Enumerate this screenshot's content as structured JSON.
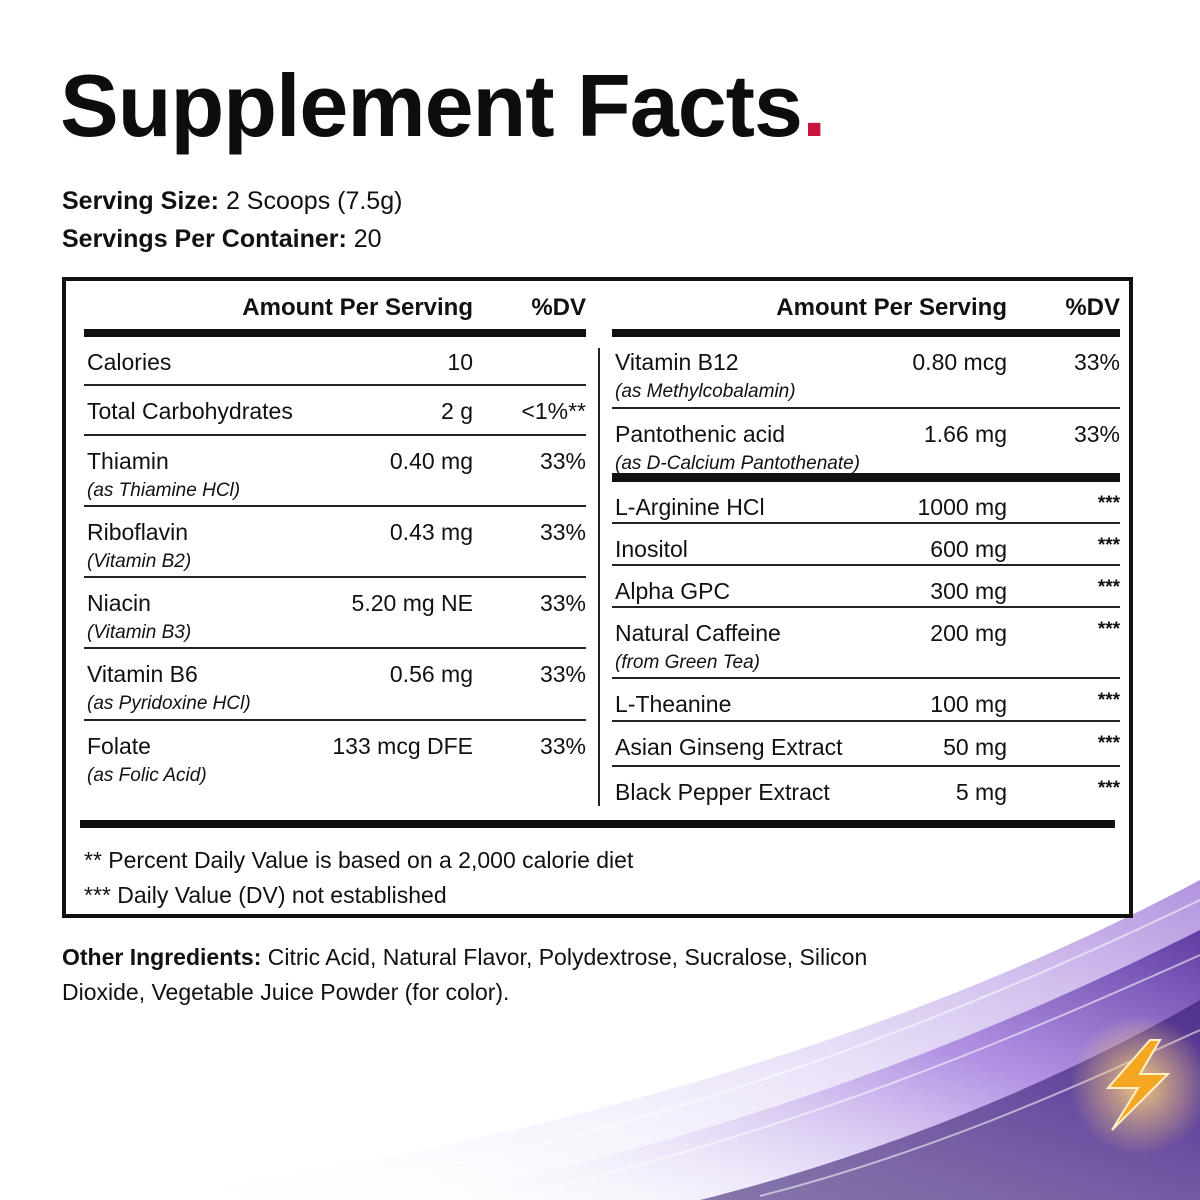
{
  "title": "Supplement Facts",
  "title_dot": ".",
  "serving": {
    "size_label": "Serving Size:",
    "size_value": "2 Scoops (7.5g)",
    "per_container_label": "Servings Per Container:",
    "per_container_value": "20"
  },
  "table": {
    "header_amount": "Amount Per Serving",
    "header_dv": "%DV",
    "left_rows": [
      {
        "name": "Calories",
        "sub": "",
        "amount": "10",
        "dv": ""
      },
      {
        "name": "Total Carbohydrates",
        "sub": "",
        "amount": "2 g",
        "dv": "<1%**"
      },
      {
        "name": "Thiamin",
        "sub": "(as Thiamine HCl)",
        "amount": "0.40 mg",
        "dv": "33%"
      },
      {
        "name": "Riboflavin",
        "sub": "(Vitamin B2)",
        "amount": "0.43 mg",
        "dv": "33%"
      },
      {
        "name": "Niacin",
        "sub": "(Vitamin B3)",
        "amount": "5.20 mg NE",
        "dv": "33%"
      },
      {
        "name": "Vitamin B6",
        "sub": "(as Pyridoxine HCl)",
        "amount": "0.56 mg",
        "dv": "33%"
      },
      {
        "name": "Folate",
        "sub": "(as Folic Acid)",
        "amount": "133 mcg DFE",
        "dv": "33%"
      }
    ],
    "right_rows_top": [
      {
        "name": "Vitamin B12",
        "sub": "(as Methylcobalamin)",
        "amount": "0.80 mcg",
        "dv": "33%"
      },
      {
        "name": "Pantothenic acid",
        "sub": "(as D-Calcium Pantothenate)",
        "amount": "1.66 mg",
        "dv": "33%"
      }
    ],
    "right_rows_bottom": [
      {
        "name": "L-Arginine HCl",
        "sub": "",
        "amount": "1000 mg",
        "dv": "***"
      },
      {
        "name": "Inositol",
        "sub": "",
        "amount": "600 mg",
        "dv": "***"
      },
      {
        "name": "Alpha GPC",
        "sub": "",
        "amount": "300 mg",
        "dv": "***"
      },
      {
        "name": "Natural Caffeine",
        "sub": "(from Green Tea)",
        "amount": "200 mg",
        "dv": "***"
      },
      {
        "name": "L-Theanine",
        "sub": "",
        "amount": "100 mg",
        "dv": "***"
      },
      {
        "name": "Asian Ginseng Extract",
        "sub": "",
        "amount": "50 mg",
        "dv": "***"
      },
      {
        "name": "Black Pepper Extract",
        "sub": "",
        "amount": "5 mg",
        "dv": "***"
      }
    ]
  },
  "footnotes": {
    "note1": "** Percent Daily Value is based on a 2,000 calorie diet",
    "note2": "*** Daily Value (DV) not established"
  },
  "other_ingredients": {
    "label": "Other Ingredients:",
    "text": "Citric Acid, Natural Flavor, Polydextrose, Sucralose, Silicon Dioxide, Vegetable Juice Powder (for color)."
  },
  "decor": {
    "accent": "#c8143c",
    "swirl_colors": [
      "#6a2fc0",
      "#9b6ce0",
      "#d9c8f5"
    ],
    "bolt_color": "#f5a623",
    "icon": "lightning-bolt-icon"
  }
}
